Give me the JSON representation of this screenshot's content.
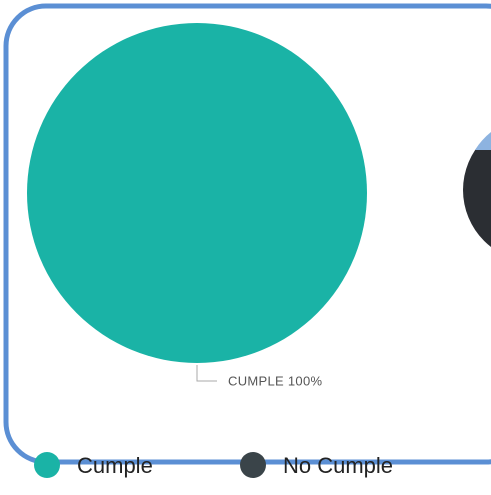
{
  "chart_data": {
    "type": "pie",
    "categories": [
      "Cumple",
      "No Cumple"
    ],
    "values": [
      100,
      0
    ],
    "value_labels": [
      "CUMPLE 100%",
      null
    ],
    "colors": [
      "#1ab3a6",
      "#3a4449"
    ]
  }
}
